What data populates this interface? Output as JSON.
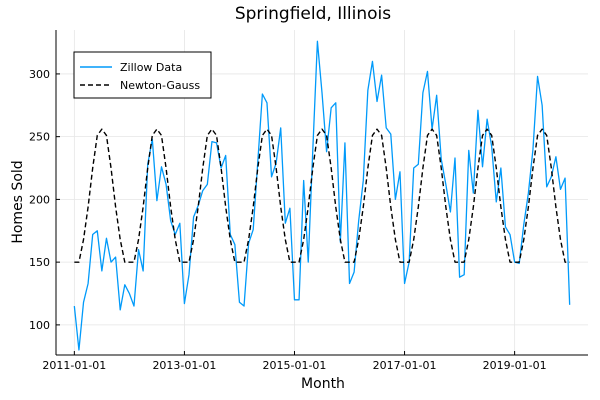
{
  "chart_data": {
    "type": "line",
    "title": "Springfield, Illinois",
    "xlabel": "Month",
    "ylabel": "Homes Sold",
    "x_ticks": [
      "2011-01-01",
      "2013-01-01",
      "2015-01-01",
      "2017-01-01",
      "2019-01-01"
    ],
    "x_tick_months": [
      0,
      24,
      48,
      72,
      96
    ],
    "y_ticks": [
      100,
      150,
      200,
      250,
      300
    ],
    "xlim": [
      "2010-09-01",
      "2020-05-01"
    ],
    "ylim": [
      76,
      335
    ],
    "grid": true,
    "legend_position": "top-left",
    "x_start": "2011-01-01",
    "x_step": "1 month",
    "series": [
      {
        "name": "Zillow Data",
        "color": "#009AFA",
        "style": "solid",
        "values": [
          115,
          80,
          118,
          133,
          172,
          175,
          143,
          169,
          150,
          154,
          112,
          132,
          125,
          115,
          160,
          143,
          228,
          248,
          199,
          226,
          212,
          183,
          172,
          181,
          117,
          140,
          186,
          195,
          207,
          212,
          246,
          245,
          225,
          235,
          172,
          164,
          118,
          115,
          165,
          176,
          230,
          284,
          277,
          218,
          229,
          257,
          181,
          193,
          120,
          120,
          215,
          150,
          240,
          326,
          285,
          238,
          273,
          277,
          166,
          245,
          133,
          142,
          183,
          215,
          287,
          310,
          278,
          299,
          257,
          252,
          200,
          222,
          133,
          150,
          225,
          228,
          285,
          302,
          256,
          283,
          232,
          212,
          190,
          233,
          138,
          140,
          239,
          205,
          271,
          226,
          264,
          242,
          198,
          225,
          178,
          172,
          150,
          149,
          180,
          205,
          240,
          298,
          275,
          210,
          218,
          234,
          208,
          217,
          116
        ]
      },
      {
        "name": "Newton-Gauss",
        "color": "#000000",
        "style": "dashed",
        "values": [
          150,
          150,
          168,
          194,
          225,
          251,
          256,
          251,
          225,
          194,
          168,
          150,
          150,
          150,
          168,
          194,
          225,
          251,
          256,
          251,
          225,
          194,
          168,
          150,
          150,
          150,
          168,
          194,
          225,
          251,
          256,
          251,
          225,
          194,
          168,
          150,
          150,
          150,
          168,
          194,
          225,
          251,
          256,
          251,
          225,
          194,
          168,
          150,
          150,
          150,
          168,
          194,
          225,
          251,
          256,
          251,
          225,
          194,
          168,
          150,
          150,
          150,
          168,
          194,
          225,
          251,
          256,
          251,
          225,
          194,
          168,
          150,
          150,
          150,
          168,
          194,
          225,
          251,
          256,
          251,
          225,
          194,
          168,
          150,
          150,
          150,
          168,
          194,
          225,
          251,
          256,
          251,
          225,
          194,
          168,
          150,
          150,
          150,
          168,
          194,
          225,
          251,
          256,
          251,
          225,
          194,
          168,
          150,
          150
        ]
      }
    ]
  }
}
